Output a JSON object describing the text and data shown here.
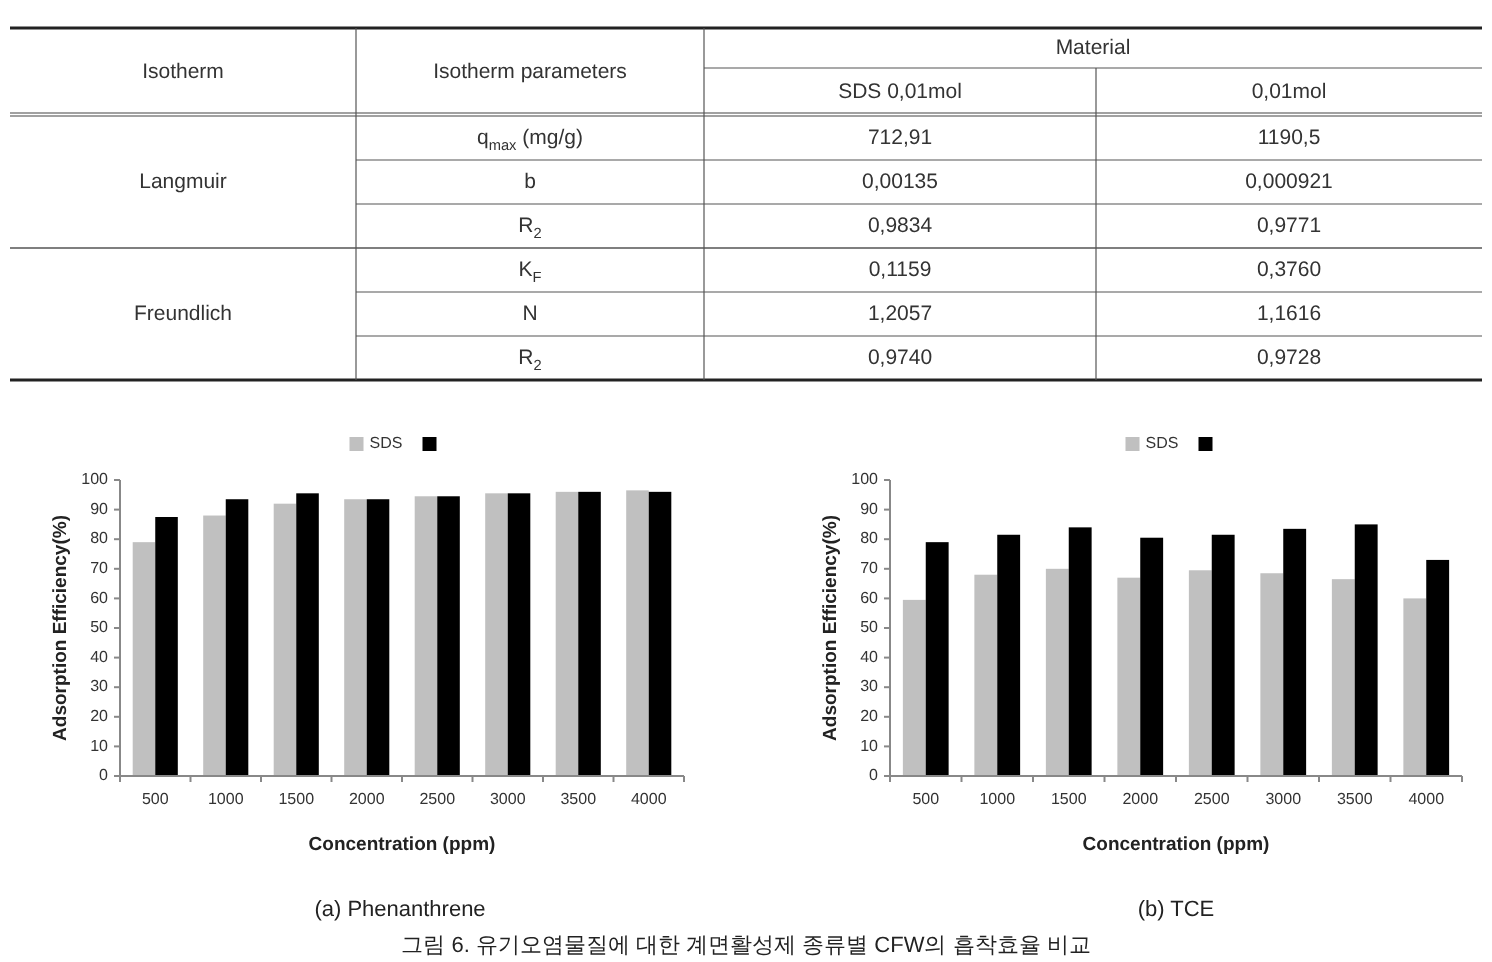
{
  "chart_data": [
    {
      "type": "other",
      "annotations": [
        "Isotherm",
        "Isotherm parameters",
        "Material",
        "SDS 0,01mol",
        "0,01mol",
        "Langmuir",
        "q$_{max}$ (mg/g)",
        "712,91",
        "1190,5",
        "b",
        "0,00135",
        "0,000921",
        "R$_{2}$",
        "0,9834",
        "0,9771",
        "Freundlich",
        "K$_{F}$",
        "0,1159",
        "0,3760",
        "N",
        "1,2057",
        "1,1616",
        "R$_{2}$",
        "0,9740",
        "0,9728"
      ]
    },
    {
      "type": "bar",
      "title": "(a) Phenanthrene",
      "xlabel": "Concentration (ppm)",
      "ylabel": "Adsorption Efficiency(%)",
      "categories": [
        "500",
        "1000",
        "1500",
        "2000",
        "2500",
        "3000",
        "3500",
        "4000"
      ],
      "series": [
        {
          "name": "SDS",
          "color": "#c0c0c0",
          "values": [
            79,
            88,
            92,
            93.5,
            94.5,
            95.5,
            96,
            96.5
          ]
        },
        {
          "color": "#000000",
          "values": [
            87.5,
            93.5,
            95.5,
            93.5,
            94.5,
            95.5,
            96,
            96
          ]
        }
      ],
      "ylim": [
        0,
        100
      ],
      "yticks": [
        0,
        10,
        20,
        30,
        40,
        50,
        60,
        70,
        80,
        90,
        100
      ],
      "grid": false,
      "legend": "top"
    },
    {
      "type": "bar",
      "title": "(b) TCE",
      "xlabel": "Concentration (ppm)",
      "ylabel": "Adsorption Efficiency(%)",
      "categories": [
        "500",
        "1000",
        "1500",
        "2000",
        "2500",
        "3000",
        "3500",
        "4000"
      ],
      "series": [
        {
          "name": "SDS",
          "color": "#c0c0c0",
          "values": [
            59.5,
            68,
            70,
            67,
            69.5,
            68.5,
            66.5,
            60
          ]
        },
        {
          "color": "#000000",
          "values": [
            79,
            81.5,
            84,
            80.5,
            81.5,
            83.5,
            85,
            73
          ]
        }
      ],
      "ylim": [
        0,
        100
      ],
      "yticks": [
        0,
        10,
        20,
        30,
        40,
        50,
        60,
        70,
        80,
        90,
        100
      ],
      "grid": false,
      "legend": "top",
      "annotations": [
        "그림 6. 유기오염물질에 대한 계면활성제 종류별 CFW의 흡착효율 비교"
      ]
    }
  ]
}
